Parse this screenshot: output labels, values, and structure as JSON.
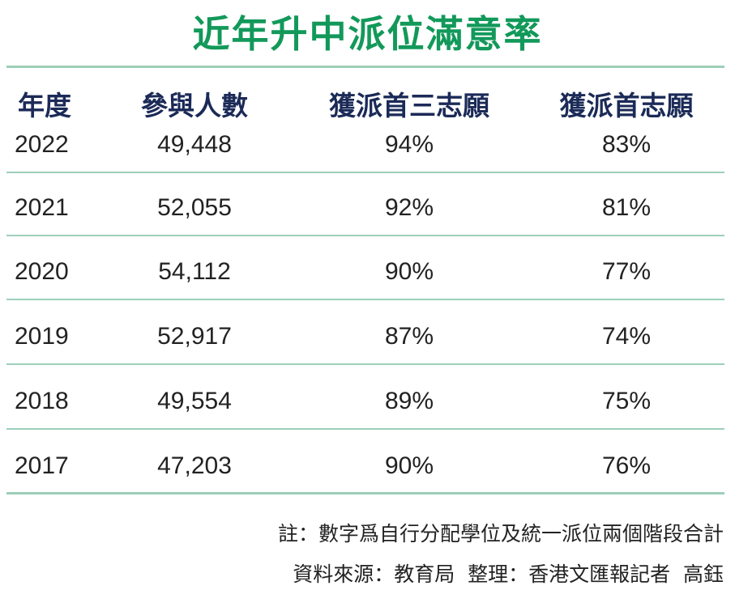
{
  "header": {
    "title": "近年升中派位滿意率"
  },
  "table": {
    "columns": [
      "年度",
      "參與人數",
      "獲派首三志願",
      "獲派首志願"
    ],
    "rows": [
      [
        "2022",
        "49,448",
        "94%",
        "83%"
      ],
      [
        "2021",
        "52,055",
        "92%",
        "81%"
      ],
      [
        "2020",
        "54,112",
        "90%",
        "77%"
      ],
      [
        "2019",
        "52,917",
        "87%",
        "74%"
      ],
      [
        "2018",
        "49,554",
        "89%",
        "75%"
      ],
      [
        "2017",
        "47,203",
        "90%",
        "76%"
      ]
    ]
  },
  "notes": [
    "註：數字爲自行分配學位及統一派位兩個階段合計",
    "資料來源：教育局  整理：香港文匯報記者  高鈺"
  ]
}
